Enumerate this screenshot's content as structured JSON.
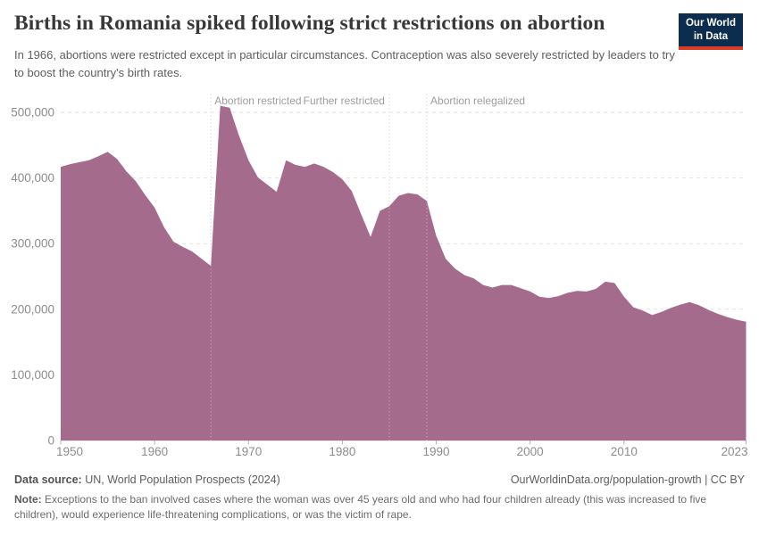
{
  "header": {
    "title": "Births in Romania spiked following strict restrictions on abortion",
    "subtitle": "In 1966, abortions were restricted except in particular circumstances. Contraception was also severely restricted by leaders to try to boost the country's birth rates.",
    "logo": {
      "line1": "Our World",
      "line2": "in Data",
      "bg_color": "#0d2d4e",
      "bar_color": "#dc3a2b"
    }
  },
  "footer": {
    "datasource_label": "Data source:",
    "datasource_text": " UN, World Population Prospects (2024)",
    "credit": "OurWorldinData.org/population-growth | CC BY",
    "note_label": "Note:",
    "note_text": " Exceptions to the ban involved cases where the woman was over 45 years old and who had four children already (this was increased to five children), would experience life-threatening complications, or was the victim of rape."
  },
  "chart_data": {
    "type": "area",
    "title": "Births in Romania",
    "series_name": "Births",
    "color": "#a56b8d",
    "grid": true,
    "ylim": [
      0,
      500000
    ],
    "xlim": [
      1950,
      2023
    ],
    "x": [
      1950,
      1951,
      1952,
      1953,
      1954,
      1955,
      1956,
      1957,
      1958,
      1959,
      1960,
      1961,
      1962,
      1963,
      1964,
      1965,
      1966,
      1967,
      1968,
      1969,
      1970,
      1971,
      1972,
      1973,
      1974,
      1975,
      1976,
      1977,
      1978,
      1979,
      1980,
      1981,
      1982,
      1983,
      1984,
      1985,
      1986,
      1987,
      1988,
      1989,
      1990,
      1991,
      1992,
      1993,
      1994,
      1995,
      1996,
      1997,
      1998,
      1999,
      2000,
      2001,
      2002,
      2003,
      2004,
      2005,
      2006,
      2007,
      2008,
      2009,
      2010,
      2011,
      2012,
      2013,
      2014,
      2015,
      2016,
      2017,
      2018,
      2019,
      2020,
      2021,
      2022,
      2023
    ],
    "values": [
      417000,
      421000,
      424000,
      427000,
      433000,
      440000,
      429000,
      410000,
      395000,
      374000,
      355000,
      325000,
      303000,
      295000,
      288000,
      277000,
      266000,
      510000,
      507000,
      464000,
      427000,
      401000,
      390000,
      379000,
      427000,
      420000,
      417000,
      422000,
      417000,
      409000,
      398000,
      380000,
      345000,
      310000,
      350000,
      357000,
      373000,
      377000,
      375000,
      365000,
      312000,
      277000,
      262000,
      252000,
      247000,
      237000,
      233000,
      237000,
      237000,
      232000,
      227000,
      219000,
      217000,
      220000,
      225000,
      228000,
      227000,
      231000,
      242000,
      240000,
      219000,
      203000,
      198000,
      191000,
      196000,
      202000,
      207000,
      211000,
      206000,
      199000,
      193000,
      188000,
      184000,
      181000
    ],
    "yticks": [
      {
        "v": 0,
        "label": "0"
      },
      {
        "v": 100000,
        "label": "100,000"
      },
      {
        "v": 200000,
        "label": "200,000"
      },
      {
        "v": 300000,
        "label": "300,000"
      },
      {
        "v": 400000,
        "label": "400,000"
      },
      {
        "v": 500000,
        "label": "500,000"
      }
    ],
    "xticks": [
      {
        "v": 1950,
        "label": "1950"
      },
      {
        "v": 1960,
        "label": "1960"
      },
      {
        "v": 1970,
        "label": "1970"
      },
      {
        "v": 1980,
        "label": "1980"
      },
      {
        "v": 1990,
        "label": "1990"
      },
      {
        "v": 2000,
        "label": "2000"
      },
      {
        "v": 2010,
        "label": "2010"
      },
      {
        "v": 2023,
        "label": "2023"
      }
    ],
    "annotations": [
      {
        "year": 1966,
        "label": "Abortion restricted",
        "align": "start"
      },
      {
        "year": 1985,
        "label": "Further restricted",
        "align": "end"
      },
      {
        "year": 1989,
        "label": "Abortion relegalized",
        "align": "start"
      }
    ]
  }
}
